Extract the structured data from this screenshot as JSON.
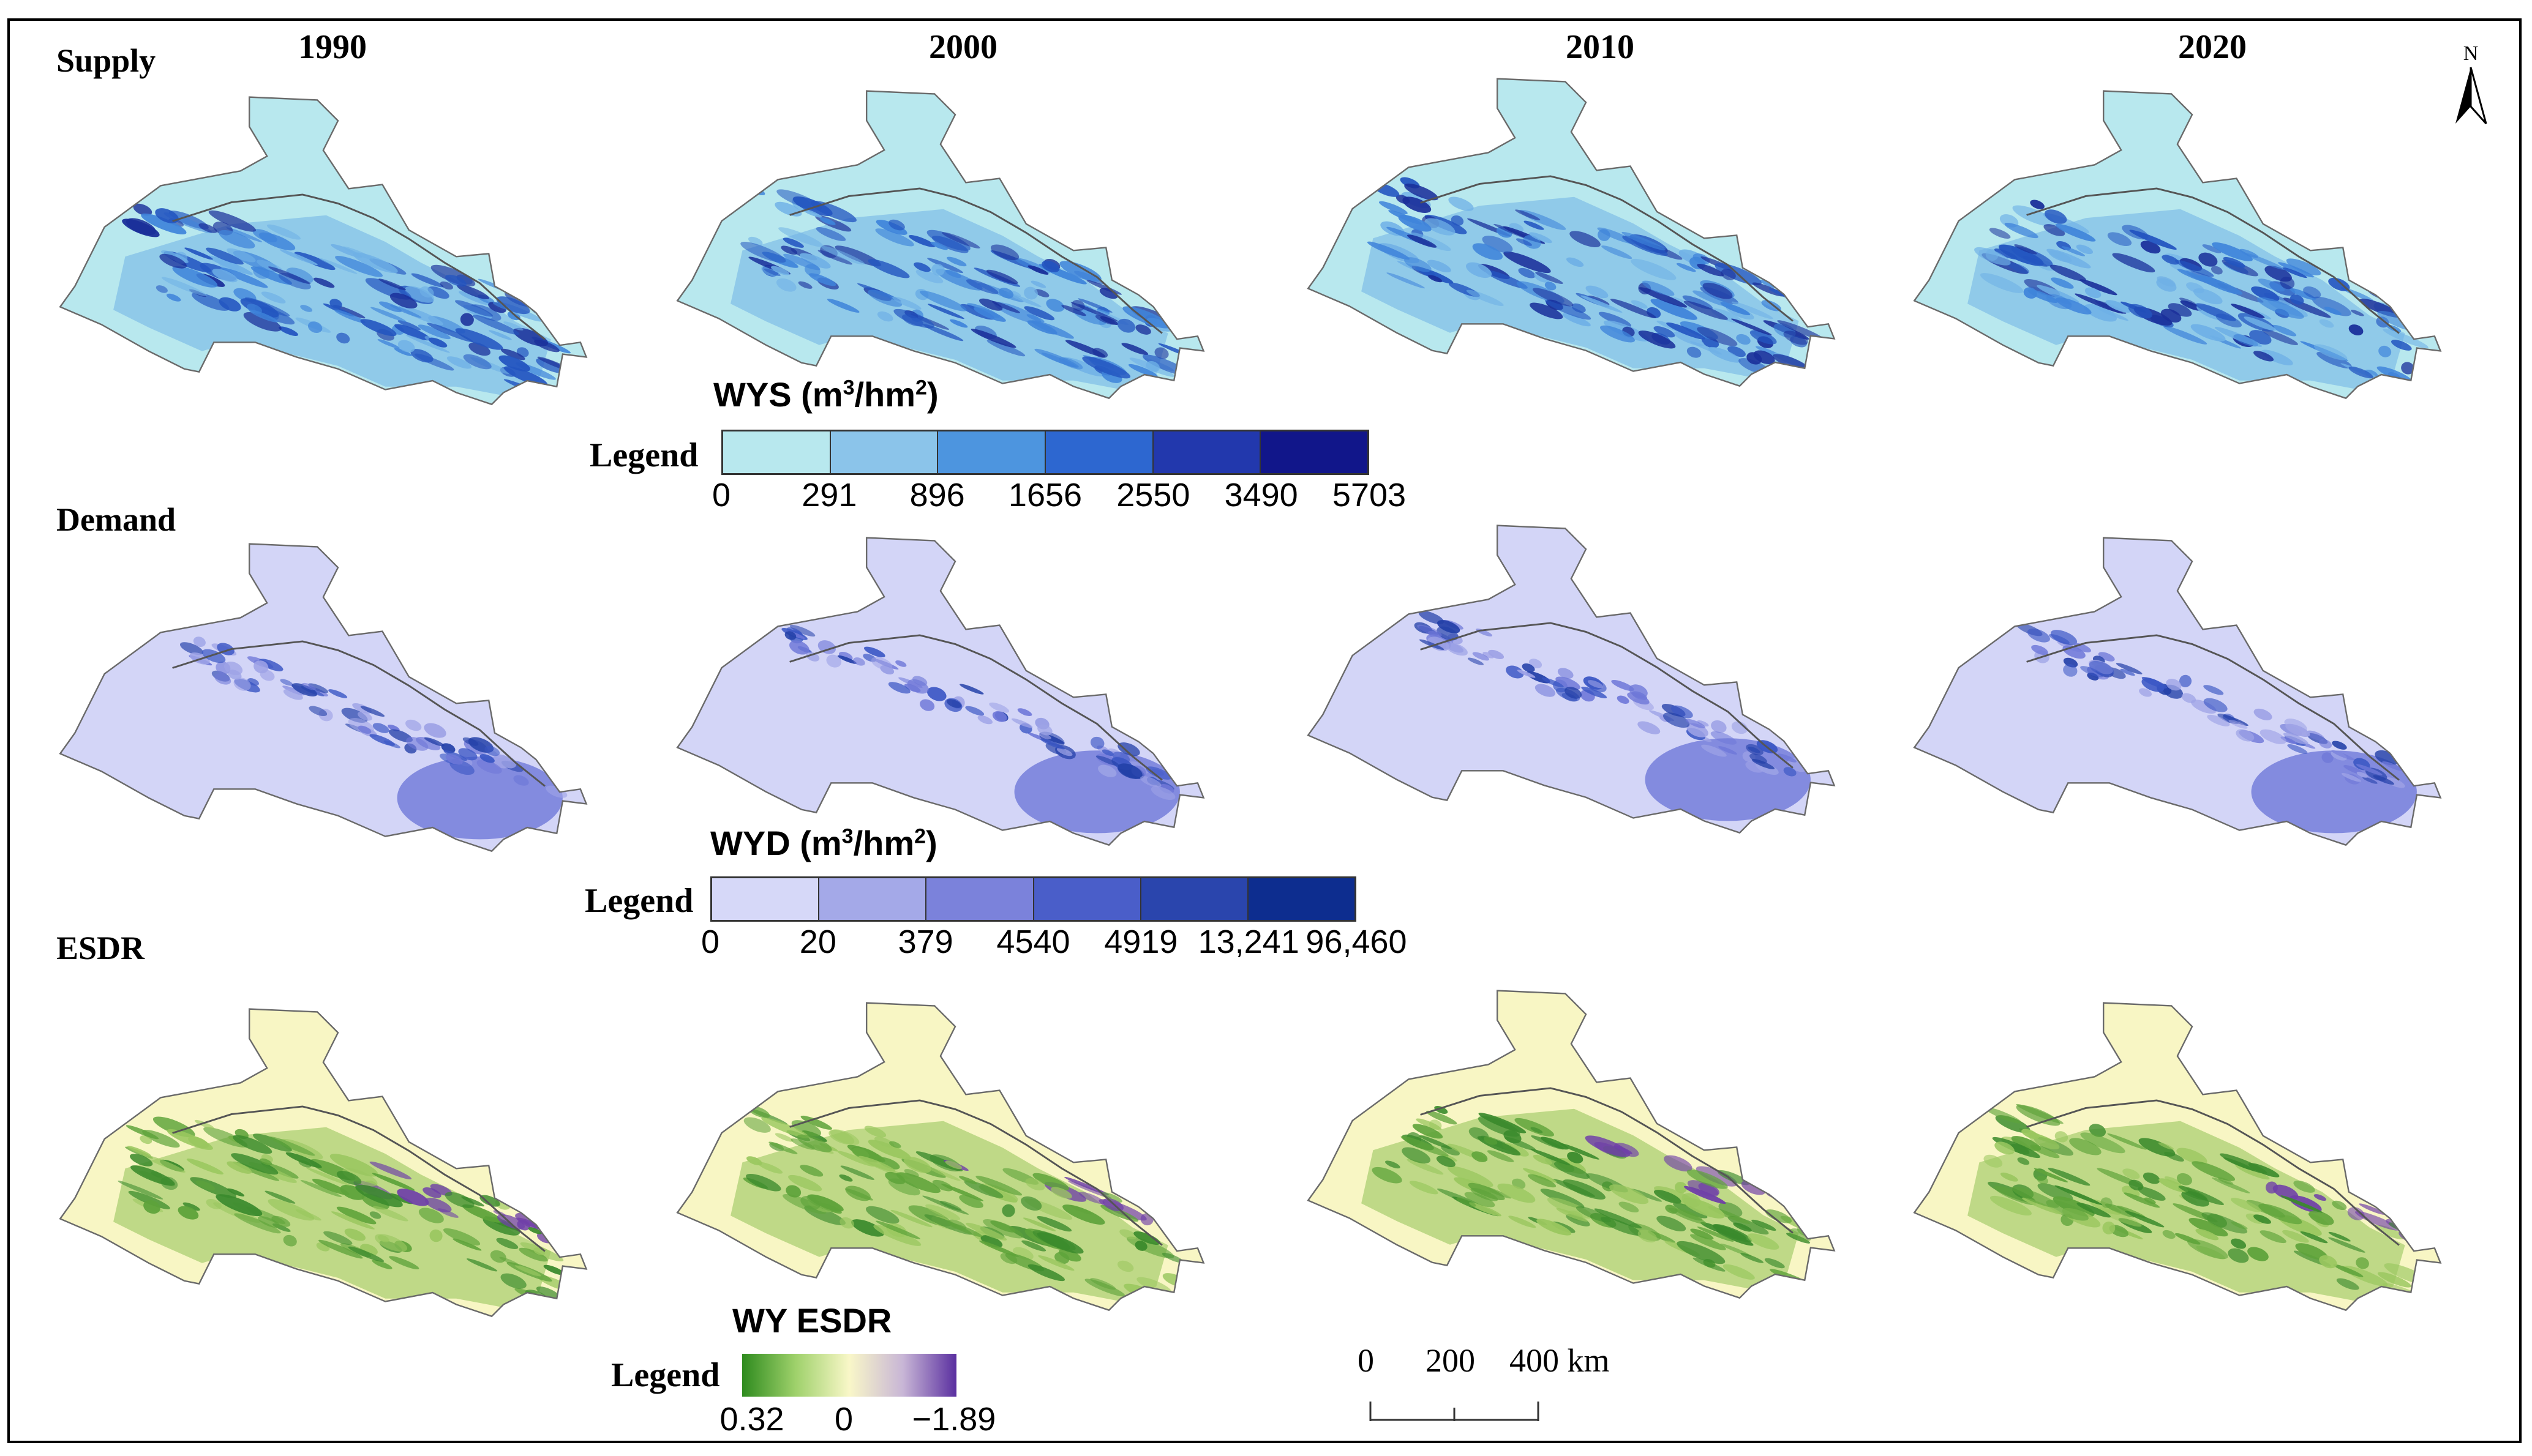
{
  "years": [
    "1990",
    "2000",
    "2010",
    "2020"
  ],
  "rows": [
    {
      "label": "Supply",
      "base_color": "#b8e8ee",
      "patch_colors": [
        "#6fb0e6",
        "#3f84da",
        "#2355c0",
        "#1a2f9a"
      ]
    },
    {
      "label": "Demand",
      "base_color": "#d3d5f7",
      "patch_colors": [
        "#9ea3e6",
        "#6f78d8",
        "#3a56c4",
        "#2340a8"
      ]
    },
    {
      "label": "ESDR",
      "base_color": "#f8f6c4",
      "patch_colors": [
        "#9ac75f",
        "#5ea33a",
        "#3a8a2c",
        "#6f3fa8"
      ]
    }
  ],
  "legends": {
    "wys": {
      "title_main": "WYS (m",
      "sup1": "3",
      "title_mid": "/hm",
      "sup2": "2",
      "title_end": ")",
      "word": "Legend",
      "colors": [
        "#b8e8ee",
        "#8bc4ea",
        "#4d95df",
        "#2d67d0",
        "#2238ad",
        "#11168a"
      ],
      "ticks": [
        "0",
        "291",
        "896",
        "1656",
        "2550",
        "3490",
        "5703"
      ]
    },
    "wyd": {
      "title_main": "WYD (m",
      "sup1": "3",
      "title_mid": "/hm",
      "sup2": "2",
      "title_end": ")",
      "word": "Legend",
      "colors": [
        "#d6d8f8",
        "#a4a9e8",
        "#7b82db",
        "#4a5ec9",
        "#2a45ad",
        "#0d2d8f"
      ],
      "ticks": [
        "0",
        "20",
        "379",
        "4540",
        "4919",
        "13,241",
        "96,460"
      ]
    },
    "esdr": {
      "title": "WY ESDR",
      "word": "Legend",
      "gradient": [
        "#2e8b1e",
        "#9fd16b",
        "#f9f7c8",
        "#c8b6d6",
        "#5a2fa0"
      ],
      "ticks": [
        "0.32",
        "0",
        "−1.89"
      ]
    }
  },
  "north_label": "N",
  "scale_bar": {
    "ticks": [
      "0",
      "200",
      "400 km"
    ]
  }
}
